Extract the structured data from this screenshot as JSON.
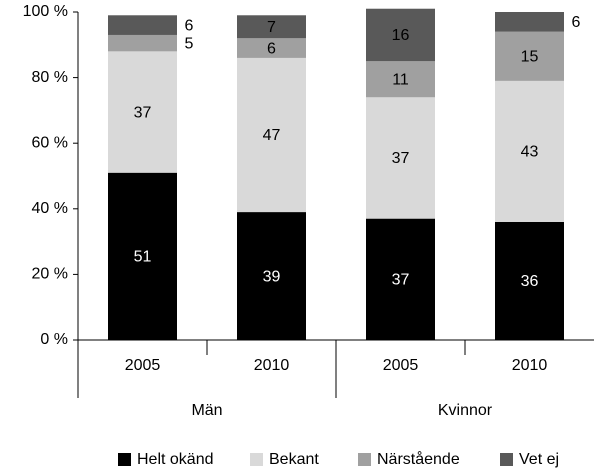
{
  "chart_data": {
    "type": "stacked_bar",
    "categories": [
      "2005",
      "2010",
      "2005",
      "2010"
    ],
    "groups": [
      {
        "name": "Män",
        "span": 2
      },
      {
        "name": "Kvinnor",
        "span": 2
      }
    ],
    "series": [
      {
        "name": "Helt okänd",
        "color": "#000000",
        "values": [
          51,
          39,
          37,
          36
        ]
      },
      {
        "name": "Bekant",
        "color": "#d9d9d9",
        "values": [
          37,
          47,
          37,
          43
        ]
      },
      {
        "name": "Närstående",
        "color": "#a0a0a0",
        "values": [
          5,
          6,
          11,
          15
        ]
      },
      {
        "name": "Vet ej",
        "color": "#595959",
        "values": [
          6,
          7,
          16,
          6
        ]
      }
    ],
    "ylim": [
      0,
      100
    ],
    "yticks": [
      {
        "value": 0,
        "label": "0 %"
      },
      {
        "value": 20,
        "label": "20 %"
      },
      {
        "value": 40,
        "label": "40 %"
      },
      {
        "value": 60,
        "label": "60 %"
      },
      {
        "value": 80,
        "label": "80 %"
      },
      {
        "value": 100,
        "label": "100 %"
      }
    ],
    "legend": "bottom"
  }
}
